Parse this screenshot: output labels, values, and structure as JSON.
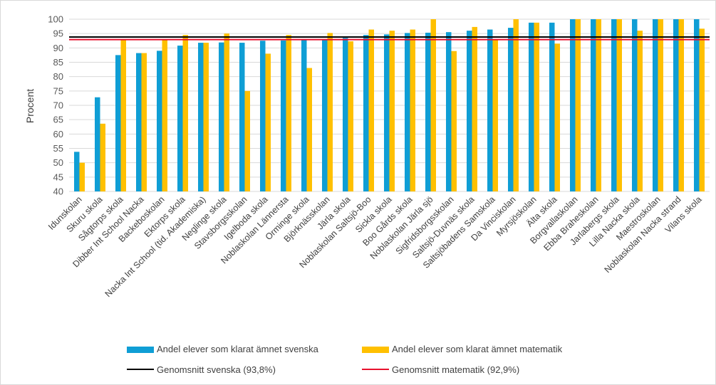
{
  "chart_data": {
    "type": "bar",
    "ylabel": "Procent",
    "ylim": [
      40,
      100
    ],
    "yticks": [
      40,
      45,
      50,
      55,
      60,
      65,
      70,
      75,
      80,
      85,
      90,
      95,
      100
    ],
    "grid": true,
    "legend_position": "bottom",
    "categories": [
      "Idunskolan",
      "Skuru skola",
      "Sågtorps skola",
      "Dibber Int School Nacka",
      "Backeboskolan",
      "Ektorps skola",
      "Nacka Int School (tid. Akademiska)",
      "Neglinge skola",
      "Stavsborgsskolan",
      "Igelboda skola",
      "Noblaskolan Lännersta",
      "Orminge skola",
      "Björknässkolan",
      "Järla skola",
      "Noblaskolan Saltsjö-Boo",
      "Sickla skola",
      "Boo Gårds skola",
      "Noblaskolan Järla sjö",
      "Sigfridsborgsskolan",
      "Saltsjö-Duvnäs skola",
      "Saltsjöbadens Samskola",
      "Da Vinciskolan",
      "Myrsjöskolan",
      "Älta skola",
      "Borgvallaskolan",
      "Ebba Braheskolan",
      "Jarlabergs skola",
      "Lilla Nacka skola",
      "Maestroskolan",
      "Noblaskolan Nacka strand",
      "Vilans skola"
    ],
    "series": [
      {
        "name": "Andel elever som klarat ämnet svenska",
        "color": "#0f9ed5",
        "values": [
          53.8,
          72.8,
          87.5,
          88.2,
          89.0,
          90.8,
          91.8,
          91.9,
          91.8,
          92.5,
          92.6,
          92.8,
          93.0,
          93.5,
          94.5,
          94.7,
          95.2,
          95.3,
          95.5,
          96.0,
          96.4,
          97.0,
          98.8,
          98.8,
          100,
          100,
          100,
          100,
          100,
          100,
          100
        ]
      },
      {
        "name": "Andel elever som klarat ämnet matematik",
        "color": "#ffc000",
        "values": [
          50.0,
          63.6,
          92.7,
          88.2,
          93.0,
          94.5,
          91.8,
          95.0,
          75.0,
          88.0,
          94.5,
          83.0,
          95.2,
          92.3,
          96.4,
          96.0,
          96.4,
          100,
          88.9,
          97.3,
          93.0,
          100,
          98.8,
          91.5,
          100,
          100,
          100,
          96.0,
          100,
          100,
          96.7
        ]
      }
    ],
    "reference_lines": [
      {
        "name": "Genomsnitt svenska (93,8%)",
        "value": 93.8,
        "color": "#000000"
      },
      {
        "name": "Genomsnitt matematik (92,9%)",
        "value": 92.9,
        "color": "#e8112d"
      }
    ]
  }
}
